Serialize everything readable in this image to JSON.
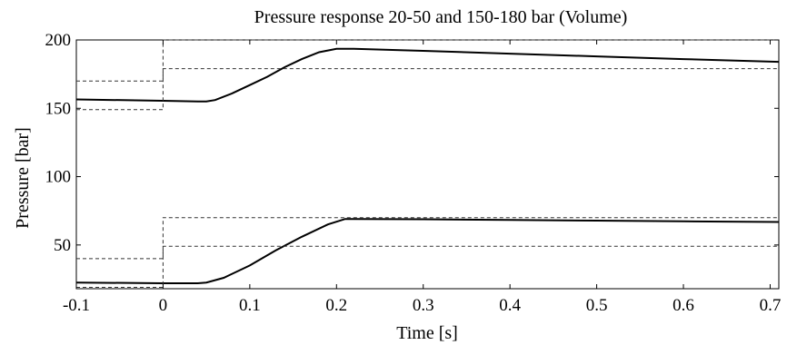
{
  "chart_data": {
    "type": "line",
    "title": "Pressure response 20-50 and 150-180 bar (Volume)",
    "xlabel": "Time [s]",
    "ylabel": "Pressure [bar]",
    "xlim": [
      -0.1,
      0.71
    ],
    "ylim": [
      18,
      200
    ],
    "x_ticks": [
      -0.1,
      0,
      0.1,
      0.2,
      0.3,
      0.4,
      0.5,
      0.6,
      0.7
    ],
    "x_tick_labels": [
      "-0.1",
      "0",
      "0.1",
      "0.2",
      "0.3",
      "0.4",
      "0.5",
      "0.6",
      "0.7"
    ],
    "y_ticks": [
      50,
      100,
      150,
      200
    ],
    "y_tick_labels": [
      "50",
      "100",
      "150",
      "200"
    ],
    "grid": false,
    "legend": "none",
    "colors": {
      "response": "#000000",
      "reference": "#333333"
    },
    "series": [
      {
        "style": "solid",
        "x": [
          -0.1,
          0,
          0.04,
          0.05,
          0.06,
          0.08,
          0.1,
          0.12,
          0.14,
          0.16,
          0.18,
          0.2,
          0.22,
          0.3,
          0.4,
          0.5,
          0.6,
          0.71
        ],
        "y": [
          156.5,
          155.5,
          155,
          155,
          156,
          161,
          167,
          173,
          180,
          186,
          191,
          193.5,
          193.5,
          192,
          190,
          188,
          186,
          184
        ]
      },
      {
        "style": "solid",
        "x": [
          -0.1,
          0,
          0.04,
          0.05,
          0.07,
          0.1,
          0.13,
          0.16,
          0.19,
          0.21,
          0.22,
          0.3,
          0.4,
          0.5,
          0.6,
          0.71
        ],
        "y": [
          22.5,
          22,
          22,
          22.5,
          26,
          35,
          46,
          56,
          65,
          69,
          69,
          68.8,
          68.3,
          67.8,
          67.3,
          66.8
        ]
      },
      {
        "style": "dashed",
        "x": [
          -0.1,
          0,
          0,
          0.71
        ],
        "y": [
          170,
          170,
          200,
          200
        ]
      },
      {
        "style": "dashed",
        "x": [
          -0.1,
          0,
          0,
          0.71
        ],
        "y": [
          149,
          149,
          179,
          179
        ]
      },
      {
        "style": "dashed",
        "x": [
          -0.1,
          0,
          0,
          0.71
        ],
        "y": [
          40,
          40,
          70,
          70
        ]
      },
      {
        "style": "dashed",
        "x": [
          -0.1,
          0,
          0,
          0.71
        ],
        "y": [
          19,
          19,
          49,
          49
        ]
      }
    ]
  }
}
